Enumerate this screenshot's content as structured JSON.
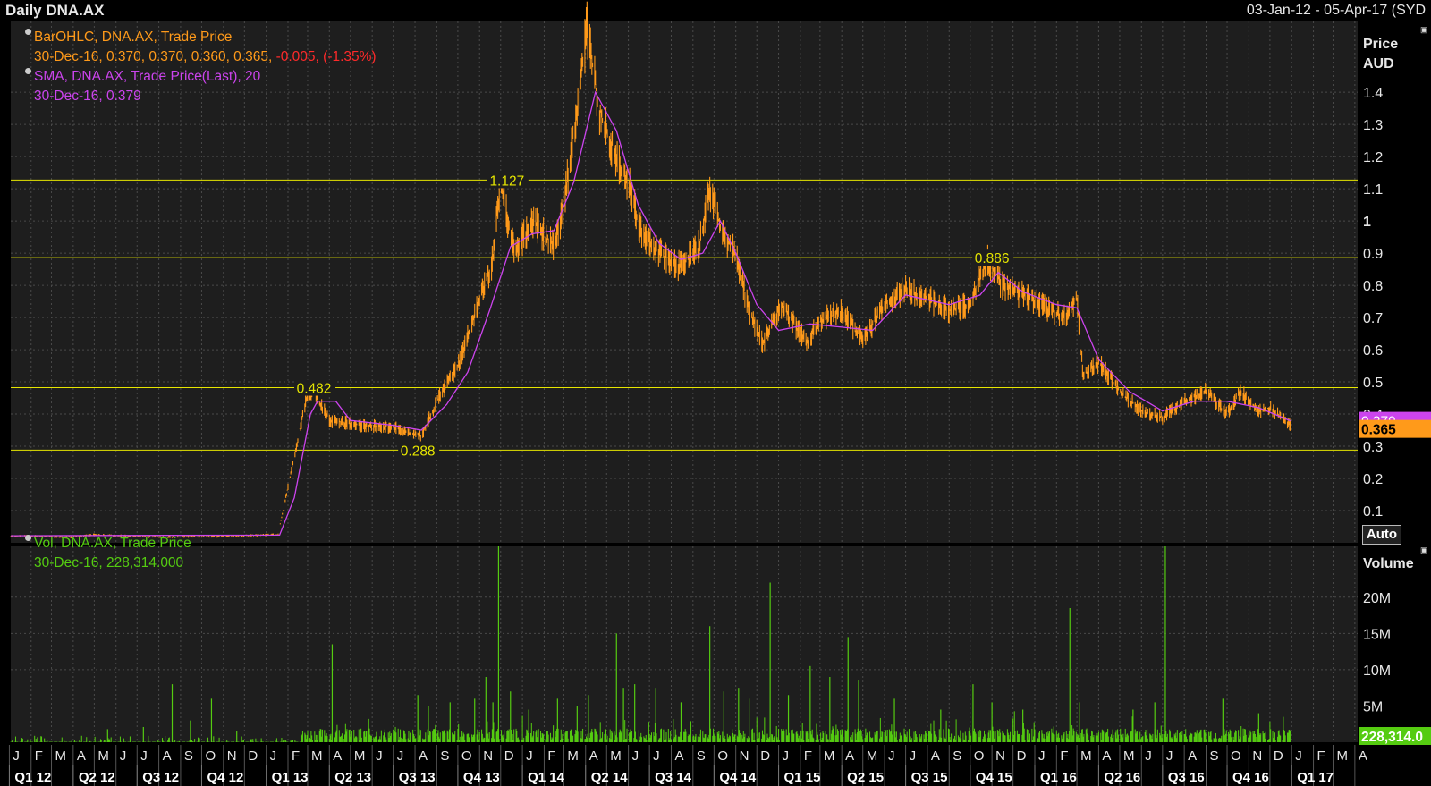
{
  "header": {
    "title": "Daily DNA.AX",
    "date_range": "03-Jan-12 - 05-Apr-17 (SYD"
  },
  "legend": {
    "ohlc_name": "BarOHLC, DNA.AX, Trade Price",
    "ohlc_values": "30-Dec-16, 0.370, 0.370, 0.360, 0.365,",
    "ohlc_change": "-0.005, (-1.35%)",
    "sma_name": "SMA, DNA.AX, Trade Price(Last),  20",
    "sma_values": "30-Dec-16, 0.379",
    "vol_name": "Vol, DNA.AX, Trade Price",
    "vol_values": "30-Dec-16, 228,314.000"
  },
  "price_axis": {
    "title": "Price",
    "unit": "AUD"
  },
  "volume_axis": {
    "title": "Volume"
  },
  "auto_label": "Auto",
  "colors": {
    "price": "#ff9a1a",
    "sma": "#cc44ee",
    "volume": "#55cc11",
    "hlines": "#e6e600",
    "grid": "#4a4a4a",
    "background": "#1e1e1e"
  },
  "chart_data": {
    "type": "line",
    "x_start": "2012-01-03",
    "x_end": "2017-04-05",
    "price": {
      "ylim": [
        0,
        1.62
      ],
      "y_ticks": [
        0.1,
        0.2,
        0.3,
        0.4,
        0.5,
        0.6,
        0.7,
        0.8,
        0.9,
        1,
        1.1,
        1.2,
        1.3,
        1.4
      ],
      "y_tick_labels": [
        "0.1",
        "0.2",
        "0.3",
        "0.4",
        "0.5",
        "0.6",
        "0.7",
        "0.8",
        "0.9",
        "1",
        "1.1",
        "1.2",
        "1.3",
        "1.4"
      ],
      "horizontal_lines": [
        {
          "value": 1.127,
          "label": "1.127"
        },
        {
          "value": 0.886,
          "label": "0.886"
        },
        {
          "value": 0.482,
          "label": "0.482"
        },
        {
          "value": 0.288,
          "label": "0.288"
        }
      ],
      "last_sma": "0.379",
      "last_price": "0.365",
      "series": [
        {
          "name": "BarOHLC, DNA.AX, Trade Price",
          "points": [
            [
              "2012-01-03",
              0.022
            ],
            [
              "2012-04-01",
              0.018
            ],
            [
              "2012-05-01",
              0.025
            ],
            [
              "2012-08-01",
              0.018
            ],
            [
              "2012-11-01",
              0.02
            ],
            [
              "2013-01-18",
              0.026
            ],
            [
              "2013-02-28",
              0.46
            ],
            [
              "2013-03-10",
              0.47
            ],
            [
              "2013-04-01",
              0.38
            ],
            [
              "2013-05-15",
              0.365
            ],
            [
              "2013-07-01",
              0.36
            ],
            [
              "2013-07-25",
              0.34
            ],
            [
              "2013-08-10",
              0.33
            ],
            [
              "2013-09-01",
              0.44
            ],
            [
              "2013-10-01",
              0.55
            ],
            [
              "2013-11-01",
              0.75
            ],
            [
              "2013-11-20",
              0.88
            ],
            [
              "2013-12-01",
              1.127
            ],
            [
              "2013-12-20",
              0.9
            ],
            [
              "2014-01-15",
              1.0
            ],
            [
              "2014-02-15",
              0.92
            ],
            [
              "2014-03-01",
              1.05
            ],
            [
              "2014-03-20",
              1.35
            ],
            [
              "2014-04-03",
              1.6
            ],
            [
              "2014-04-20",
              1.35
            ],
            [
              "2014-05-15",
              1.2
            ],
            [
              "2014-06-01",
              1.12
            ],
            [
              "2014-06-20",
              0.96
            ],
            [
              "2014-07-15",
              0.9
            ],
            [
              "2014-08-15",
              0.86
            ],
            [
              "2014-09-10",
              0.92
            ],
            [
              "2014-09-25",
              1.1
            ],
            [
              "2014-10-15",
              0.95
            ],
            [
              "2014-11-01",
              0.9
            ],
            [
              "2014-11-20",
              0.72
            ],
            [
              "2014-12-10",
              0.62
            ],
            [
              "2015-01-05",
              0.74
            ],
            [
              "2015-02-10",
              0.62
            ],
            [
              "2015-03-01",
              0.69
            ],
            [
              "2015-04-01",
              0.72
            ],
            [
              "2015-05-01",
              0.63
            ],
            [
              "2015-06-01",
              0.74
            ],
            [
              "2015-07-01",
              0.79
            ],
            [
              "2015-08-01",
              0.76
            ],
            [
              "2015-09-01",
              0.72
            ],
            [
              "2015-10-01",
              0.74
            ],
            [
              "2015-10-25",
              0.886
            ],
            [
              "2015-11-15",
              0.8
            ],
            [
              "2015-12-15",
              0.77
            ],
            [
              "2016-01-15",
              0.73
            ],
            [
              "2016-02-15",
              0.7
            ],
            [
              "2016-03-01",
              0.76
            ],
            [
              "2016-03-10",
              0.52
            ],
            [
              "2016-04-01",
              0.56
            ],
            [
              "2016-05-01",
              0.47
            ],
            [
              "2016-06-01",
              0.41
            ],
            [
              "2016-07-01",
              0.39
            ],
            [
              "2016-08-01",
              0.44
            ],
            [
              "2016-09-01",
              0.47
            ],
            [
              "2016-10-01",
              0.4
            ],
            [
              "2016-10-20",
              0.47
            ],
            [
              "2016-11-15",
              0.41
            ],
            [
              "2016-12-01",
              0.42
            ],
            [
              "2016-12-30",
              0.365
            ]
          ]
        },
        {
          "name": "SMA, DNA.AX, Trade Price(Last),  20",
          "points": [
            [
              "2012-01-03",
              0.022
            ],
            [
              "2013-01-20",
              0.024
            ],
            [
              "2013-02-10",
              0.14
            ],
            [
              "2013-03-05",
              0.4
            ],
            [
              "2013-03-15",
              0.44
            ],
            [
              "2013-04-10",
              0.44
            ],
            [
              "2013-05-01",
              0.38
            ],
            [
              "2013-07-01",
              0.365
            ],
            [
              "2013-08-10",
              0.35
            ],
            [
              "2013-09-15",
              0.43
            ],
            [
              "2013-10-15",
              0.53
            ],
            [
              "2013-11-15",
              0.72
            ],
            [
              "2013-12-15",
              0.92
            ],
            [
              "2014-01-15",
              0.96
            ],
            [
              "2014-02-15",
              0.97
            ],
            [
              "2014-03-15",
              1.12
            ],
            [
              "2014-04-15",
              1.4
            ],
            [
              "2014-05-15",
              1.28
            ],
            [
              "2014-06-15",
              1.05
            ],
            [
              "2014-07-15",
              0.93
            ],
            [
              "2014-08-15",
              0.88
            ],
            [
              "2014-09-15",
              0.9
            ],
            [
              "2014-10-10",
              1.0
            ],
            [
              "2014-11-01",
              0.9
            ],
            [
              "2014-12-01",
              0.74
            ],
            [
              "2015-01-01",
              0.66
            ],
            [
              "2015-02-15",
              0.68
            ],
            [
              "2015-04-01",
              0.67
            ],
            [
              "2015-05-15",
              0.66
            ],
            [
              "2015-07-01",
              0.77
            ],
            [
              "2015-09-01",
              0.74
            ],
            [
              "2015-10-15",
              0.77
            ],
            [
              "2015-11-10",
              0.84
            ],
            [
              "2015-12-15",
              0.78
            ],
            [
              "2016-02-01",
              0.74
            ],
            [
              "2016-03-01",
              0.73
            ],
            [
              "2016-04-01",
              0.57
            ],
            [
              "2016-05-15",
              0.47
            ],
            [
              "2016-07-01",
              0.41
            ],
            [
              "2016-08-15",
              0.44
            ],
            [
              "2016-10-01",
              0.44
            ],
            [
              "2016-11-15",
              0.42
            ],
            [
              "2016-12-30",
              0.379
            ]
          ]
        }
      ]
    },
    "volume": {
      "ylim": [
        0,
        27000000
      ],
      "y_ticks": [
        5000000,
        10000000,
        15000000,
        20000000
      ],
      "y_tick_labels": [
        "5M",
        "10M",
        "15M",
        "20M"
      ],
      "last_value": "228,314.0",
      "spikes": [
        [
          "2012-05-20",
          1.8
        ],
        [
          "2012-07-10",
          2.1
        ],
        [
          "2012-08-20",
          8.0
        ],
        [
          "2012-09-15",
          3.0
        ],
        [
          "2012-10-15",
          6.0
        ],
        [
          "2012-11-20",
          1.5
        ],
        [
          "2013-04-05",
          13.5
        ],
        [
          "2013-08-05",
          6.5
        ],
        [
          "2013-08-20",
          5.0
        ],
        [
          "2013-09-20",
          5.5
        ],
        [
          "2013-10-25",
          6.0
        ],
        [
          "2013-11-10",
          9.0
        ],
        [
          "2013-11-20",
          5.5
        ],
        [
          "2013-11-28",
          27.0
        ],
        [
          "2013-12-15",
          7.0
        ],
        [
          "2014-01-10",
          4.5
        ],
        [
          "2014-02-20",
          6.0
        ],
        [
          "2014-03-20",
          5.0
        ],
        [
          "2014-04-05",
          6.5
        ],
        [
          "2014-05-15",
          15.0
        ],
        [
          "2014-05-25",
          7.5
        ],
        [
          "2014-06-10",
          8.0
        ],
        [
          "2014-07-10",
          7.5
        ],
        [
          "2014-08-15",
          5.5
        ],
        [
          "2014-09-25",
          16.0
        ],
        [
          "2014-10-15",
          7.0
        ],
        [
          "2014-11-05",
          7.5
        ],
        [
          "2014-11-20",
          6.0
        ],
        [
          "2014-12-20",
          22.0
        ],
        [
          "2015-01-15",
          6.5
        ],
        [
          "2015-02-15",
          10.5
        ],
        [
          "2015-03-15",
          9.0
        ],
        [
          "2015-04-10",
          14.5
        ],
        [
          "2015-04-25",
          8.5
        ],
        [
          "2015-06-15",
          6.0
        ],
        [
          "2015-08-20",
          4.5
        ],
        [
          "2015-10-05",
          8.0
        ],
        [
          "2015-11-01",
          5.5
        ],
        [
          "2015-12-15",
          4.5
        ],
        [
          "2016-02-20",
          18.5
        ],
        [
          "2016-03-05",
          5.5
        ],
        [
          "2016-05-20",
          4.5
        ],
        [
          "2016-06-20",
          5.5
        ],
        [
          "2016-07-05",
          27.0
        ],
        [
          "2016-09-25",
          6.0
        ],
        [
          "2016-11-15",
          4.0
        ],
        [
          "2016-12-20",
          3.5
        ]
      ]
    },
    "x_axis": {
      "months": [
        "J",
        "F",
        "M",
        "A",
        "M",
        "J",
        "J",
        "A",
        "S",
        "O",
        "N",
        "D",
        "J",
        "F",
        "M",
        "A",
        "M",
        "J",
        "J",
        "A",
        "S",
        "O",
        "N",
        "D",
        "J",
        "F",
        "M",
        "A",
        "M",
        "J",
        "J",
        "A",
        "S",
        "O",
        "N",
        "D",
        "J",
        "F",
        "M",
        "A",
        "M",
        "J",
        "J",
        "A",
        "S",
        "O",
        "N",
        "D",
        "J",
        "F",
        "M",
        "A",
        "M",
        "J",
        "J",
        "A",
        "S",
        "O",
        "N",
        "D",
        "J",
        "F",
        "M",
        "A"
      ],
      "quarters": [
        "Q1 12",
        "Q2 12",
        "Q3 12",
        "Q4 12",
        "Q1 13",
        "Q2 13",
        "Q3 13",
        "Q4 13",
        "Q1 14",
        "Q2 14",
        "Q3 14",
        "Q4 14",
        "Q1 15",
        "Q2 15",
        "Q3 15",
        "Q4 15",
        "Q1 16",
        "Q2 16",
        "Q3 16",
        "Q4 16",
        "Q1 17"
      ]
    }
  }
}
